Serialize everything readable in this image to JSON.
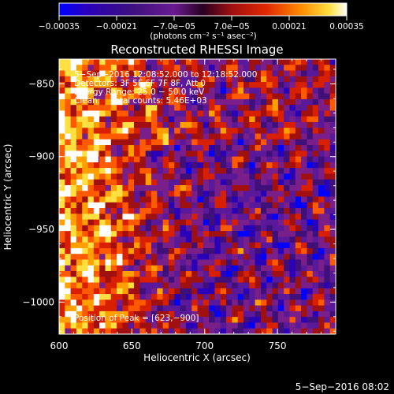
{
  "chart_data": {
    "type": "heatmap",
    "title": "Reconstructed RHESSI Image",
    "xlabel": "Heliocentric X (arcsec)",
    "ylabel": "Heliocentric Y (arcsec)",
    "xlim": [
      600,
      790
    ],
    "ylim": [
      -1022,
      -833
    ],
    "x_ticks": [
      600,
      650,
      700,
      750
    ],
    "y_ticks": [
      -850,
      -900,
      -950,
      -1000
    ],
    "x_tick_labels": [
      "600",
      "650",
      "700",
      "750"
    ],
    "y_tick_labels": [
      "−850",
      "−900",
      "−950",
      "−1000"
    ],
    "colorbar": {
      "range": [
        -0.00035,
        0.00035
      ],
      "tick_values": [
        -0.00035,
        -0.00021,
        -7e-05,
        7e-05,
        0.00021,
        0.00035
      ],
      "tick_labels": [
        "−0.00035",
        "−0.00021",
        "−7.0e−05",
        "7.0e−05",
        "0.00021",
        "0.00035"
      ],
      "unit_label": "(photons cm⁻² s⁻¹ asec⁻²)"
    },
    "annotations": [
      "5−Sep−2016 12:08:52.000 to 12:18:52.000",
      "Detectors: 3F 5F 6F 7F 8F, Att 0",
      "Energy Range: 25.0 − 50.0 keV",
      "Clean:    Total counts: 5.46E+03"
    ],
    "peak_label": "Position of Peak = [623,−900]",
    "peak": {
      "x": 623,
      "y": -900
    },
    "grid_cols": 48,
    "grid_rows": 48,
    "colormap": [
      "#0000ff",
      "#2a00b8",
      "#40107a",
      "#5a189a",
      "#7a1f8a",
      "#a01010",
      "#d82000",
      "#ff5a00",
      "#ffa000",
      "#ffe040",
      "#ffffff"
    ],
    "grid": false
  },
  "footer": {
    "timestamp": "5−Sep−2016 08:02"
  }
}
